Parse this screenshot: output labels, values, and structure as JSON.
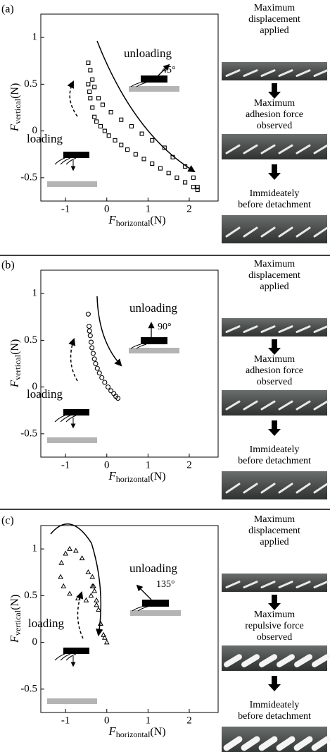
{
  "chart_data": [
    {
      "type": "scatter",
      "label": "(a)",
      "xlabel": {
        "symbol": "F",
        "subscript": "horizontal",
        "unit": "(N)"
      },
      "ylabel": {
        "symbol": "F",
        "subscript": "vertical",
        "unit": "(N)"
      },
      "xlim": [
        -1.6,
        2.7
      ],
      "ylim": [
        -0.75,
        1.25
      ],
      "xticks": [
        -1,
        0,
        1,
        2
      ],
      "yticks": [
        -0.5,
        0,
        0.5,
        1
      ],
      "series": [
        {
          "marker": "square",
          "color": "#000000",
          "x": [
            -0.45,
            -0.4,
            -0.35,
            -0.3,
            -0.2,
            -0.1,
            0.1,
            0.35,
            0.6,
            0.85,
            1.1,
            1.4,
            1.6,
            1.9,
            2.1,
            2.2,
            -0.45,
            -0.42,
            -0.4,
            -0.35,
            -0.3,
            -0.25,
            -0.15,
            -0.05,
            0.05,
            0.2,
            0.35,
            0.5,
            0.7,
            0.9,
            1.1,
            1.3,
            1.5,
            1.7,
            1.9,
            2.1,
            2.2
          ],
          "values": [
            0.73,
            0.65,
            0.55,
            0.47,
            0.35,
            0.28,
            0.2,
            0.12,
            0.05,
            -0.03,
            -0.1,
            -0.18,
            -0.28,
            -0.38,
            -0.5,
            -0.6,
            0.5,
            0.42,
            0.35,
            0.25,
            0.15,
            0.1,
            0.05,
            0,
            -0.05,
            -0.1,
            -0.15,
            -0.2,
            -0.25,
            -0.3,
            -0.35,
            -0.4,
            -0.45,
            -0.5,
            -0.55,
            -0.6,
            -0.63
          ]
        }
      ],
      "annotations": [
        "unloading",
        "loading",
        "45°"
      ],
      "frame_captions": [
        [
          "Maximum",
          "displacement",
          "applied"
        ],
        [
          "Maximum",
          "adhesion force",
          "observed"
        ],
        [
          "Immideately",
          "before detachment"
        ]
      ]
    },
    {
      "type": "scatter",
      "label": "(b)",
      "xlabel": {
        "symbol": "F",
        "subscript": "horizontal",
        "unit": "(N)"
      },
      "ylabel": {
        "symbol": "F",
        "subscript": "vertical",
        "unit": "(N)"
      },
      "xlim": [
        -1.6,
        2.7
      ],
      "ylim": [
        -0.75,
        1.25
      ],
      "xticks": [
        -1,
        0,
        1,
        2
      ],
      "yticks": [
        -0.5,
        0,
        0.5,
        1
      ],
      "series": [
        {
          "marker": "circle",
          "color": "#000000",
          "x": [
            -0.45,
            -0.43,
            -0.42,
            -0.4,
            -0.38,
            -0.36,
            -0.33,
            -0.3,
            -0.27,
            -0.23,
            -0.18,
            -0.12,
            -0.05,
            0.03,
            0.1,
            0.17,
            0.22,
            0.27
          ],
          "values": [
            0.78,
            0.65,
            0.6,
            0.55,
            0.48,
            0.42,
            0.36,
            0.3,
            0.25,
            0.2,
            0.15,
            0.1,
            0.05,
            0,
            -0.04,
            -0.07,
            -0.1,
            -0.12
          ]
        }
      ],
      "annotations": [
        "unloading",
        "loading",
        "90°"
      ],
      "frame_captions": [
        [
          "Maximum",
          "displacement",
          "applied"
        ],
        [
          "Maximum",
          "adhesion force",
          "observed"
        ],
        [
          "Immideately",
          "before detachment"
        ]
      ]
    },
    {
      "type": "scatter",
      "label": "(c)",
      "xlabel": {
        "symbol": "F",
        "subscript": "horizontal",
        "unit": "(N)"
      },
      "ylabel": {
        "symbol": "F",
        "subscript": "vertical",
        "unit": "(N)"
      },
      "xlim": [
        -1.6,
        2.7
      ],
      "ylim": [
        -0.75,
        1.25
      ],
      "xticks": [
        -1,
        0,
        1,
        2
      ],
      "yticks": [
        -0.5,
        0,
        0.5,
        1
      ],
      "series": [
        {
          "marker": "triangle",
          "color": "#000000",
          "x": [
            0,
            -0.05,
            -0.15,
            -0.25,
            -0.35,
            -0.45,
            -0.6,
            -0.75,
            -0.9,
            -1.0,
            -1.1,
            -1.12,
            -1.05,
            -0.9,
            -0.7,
            -0.5,
            -0.38,
            -0.32,
            -0.35,
            -0.3,
            -0.25,
            -0.2,
            -0.15,
            -0.08
          ],
          "values": [
            0,
            0.05,
            0.2,
            0.4,
            0.6,
            0.75,
            0.9,
            0.98,
            1.0,
            0.95,
            0.85,
            0.7,
            0.6,
            0.52,
            0.47,
            0.45,
            0.5,
            0.6,
            0.7,
            0.55,
            0.45,
            0.35,
            0.2,
            0.08
          ]
        }
      ],
      "annotations": [
        "unloading",
        "loading",
        "135°"
      ],
      "frame_captions": [
        [
          "Maximum",
          "displacement",
          "applied"
        ],
        [
          "Maximum",
          "repulsive force",
          "observed"
        ],
        [
          "Immideately",
          "before detachment"
        ]
      ]
    }
  ]
}
